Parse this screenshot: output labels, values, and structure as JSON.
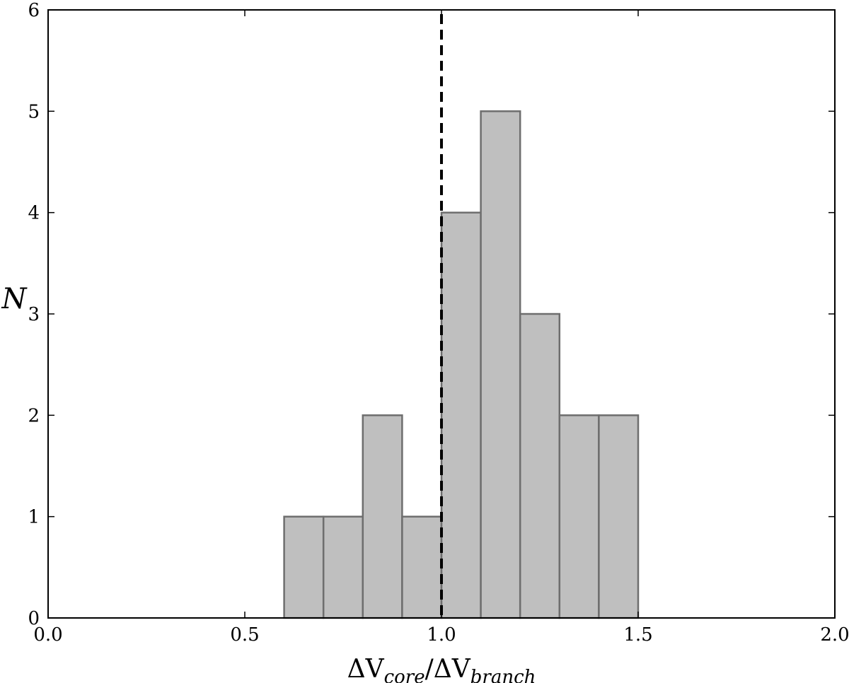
{
  "chart_data": {
    "type": "bar",
    "subtype": "histogram",
    "bins": [
      {
        "x0": 0.6,
        "x1": 0.7,
        "count": 1
      },
      {
        "x0": 0.7,
        "x1": 0.8,
        "count": 1
      },
      {
        "x0": 0.8,
        "x1": 0.9,
        "count": 2
      },
      {
        "x0": 0.9,
        "x1": 1.0,
        "count": 1
      },
      {
        "x0": 1.0,
        "x1": 1.1,
        "count": 4
      },
      {
        "x0": 1.1,
        "x1": 1.2,
        "count": 5
      },
      {
        "x0": 1.2,
        "x1": 1.3,
        "count": 3
      },
      {
        "x0": 1.3,
        "x1": 1.4,
        "count": 2
      },
      {
        "x0": 1.4,
        "x1": 1.5,
        "count": 2
      }
    ],
    "xlim": [
      0.0,
      2.0
    ],
    "ylim": [
      0,
      6
    ],
    "xticks": [
      "0.0",
      "0.5",
      "1.0",
      "1.5",
      "2.0"
    ],
    "yticks": [
      "0",
      "1",
      "2",
      "3",
      "4",
      "5",
      "6"
    ],
    "xlabel": {
      "base1": "ΔV",
      "sub1": "core",
      "sep": "/",
      "base2": "ΔV",
      "sub2": "branch"
    },
    "ylabel": "N",
    "reference_line": {
      "x": 1.0,
      "style": "dashed",
      "color": "#000000"
    },
    "bar_fill": "#bfbfbf",
    "bar_edge": "#6e6e6e",
    "grid": false,
    "legend": "none"
  }
}
